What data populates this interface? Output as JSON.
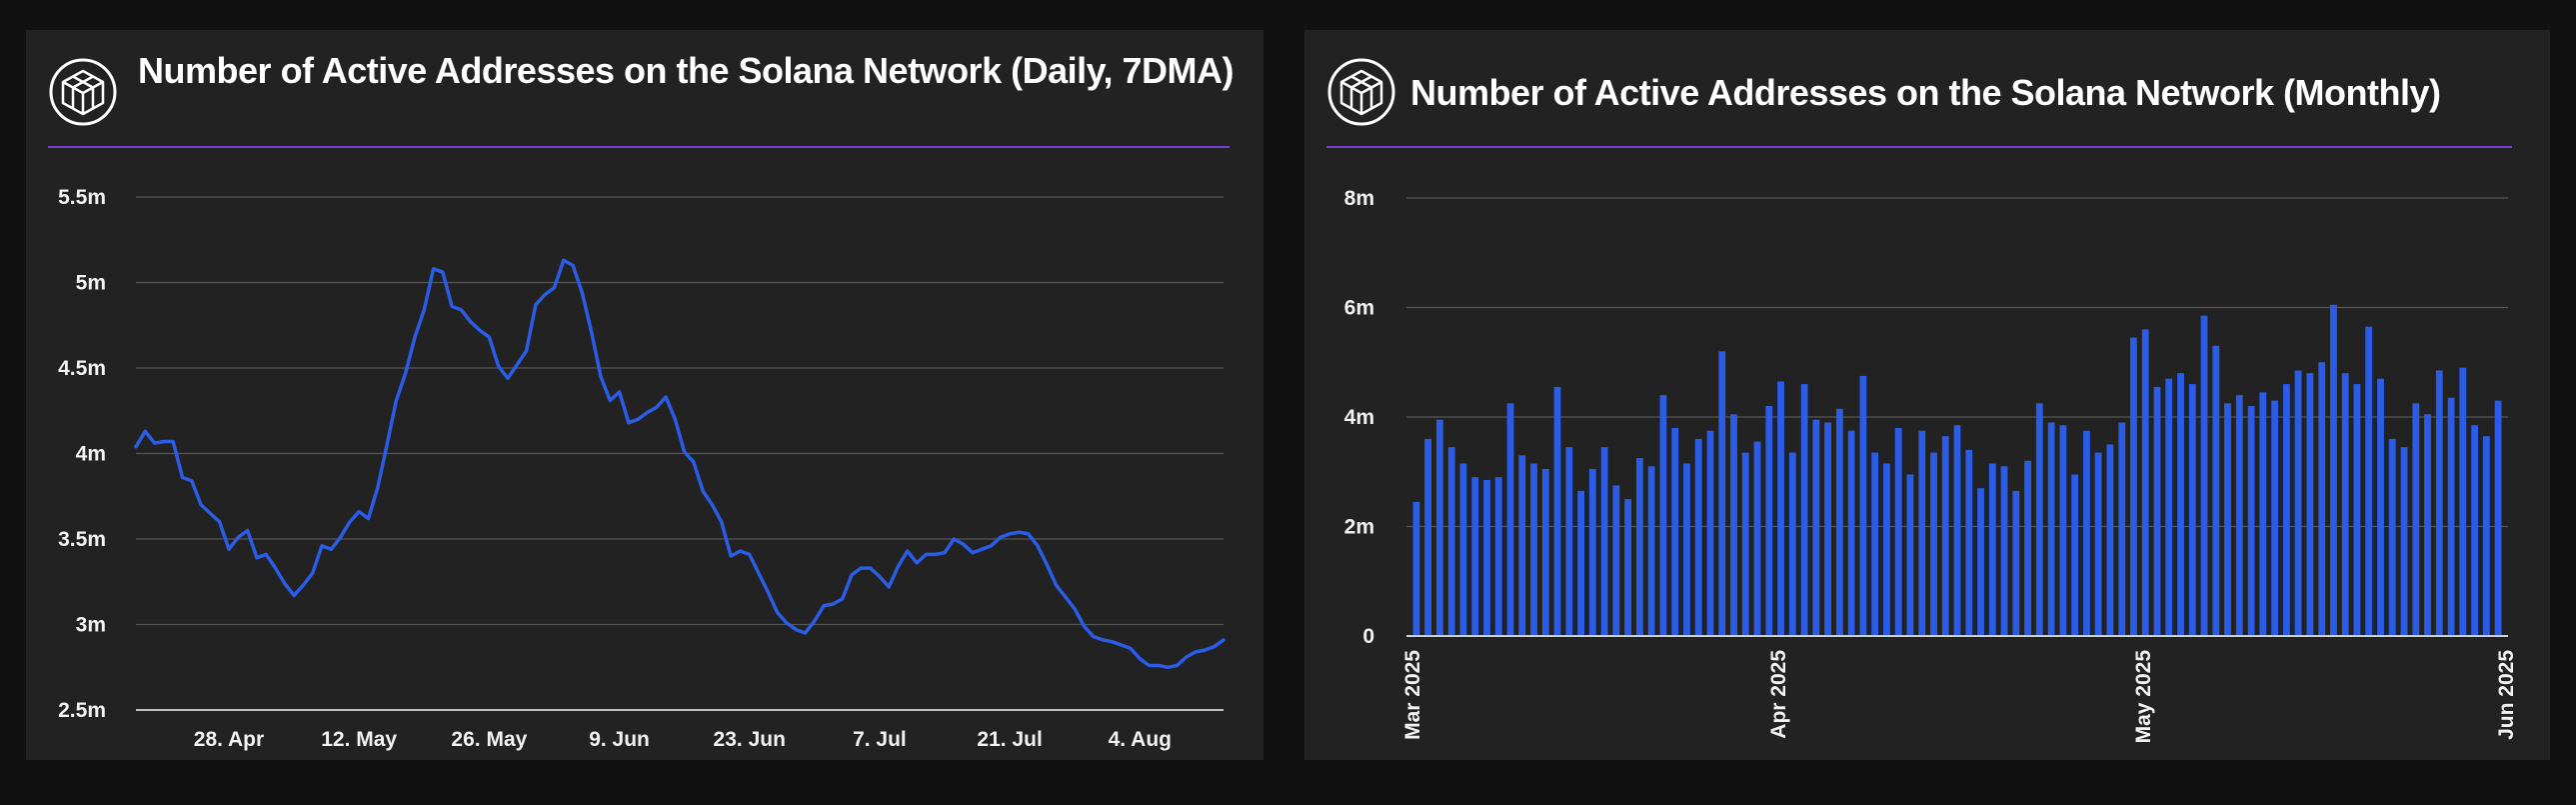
{
  "colors": {
    "panel": "#222222",
    "background": "#111111",
    "accent_rule": "#7a3bd1",
    "series": "#2b5ce6",
    "grid": "#555555"
  },
  "logo_icon": "cube-icon",
  "chart_data": [
    {
      "type": "line",
      "title": "Number of Active Addresses on the Solana Network (Daily, 7DMA)",
      "xlabel": "",
      "ylabel": "",
      "ylim": [
        2500000,
        5500000
      ],
      "y_ticks": [
        2500000,
        3000000,
        3500000,
        4000000,
        4500000,
        5000000,
        5500000
      ],
      "y_tick_labels": [
        "2.5m",
        "3m",
        "3.5m",
        "4m",
        "4.5m",
        "5m",
        "5.5m"
      ],
      "x_tick_labels": [
        "28. Apr",
        "12. May",
        "26. May",
        "9. Jun",
        "23. Jun",
        "7. Jul",
        "21. Jul",
        "4. Aug"
      ],
      "x_start": "2025-04-18",
      "series": [
        {
          "values": [
            4040000,
            4130000,
            4060000,
            4070000,
            4070000,
            3860000,
            3840000,
            3700000,
            3650000,
            3600000,
            3440000,
            3510000,
            3550000,
            3390000,
            3410000,
            3330000,
            3240000,
            3170000,
            3230000,
            3300000,
            3460000,
            3440000,
            3510000,
            3600000,
            3660000,
            3620000,
            3800000,
            4050000,
            4310000,
            4470000,
            4680000,
            4840000,
            5080000,
            5060000,
            4860000,
            4840000,
            4770000,
            4720000,
            4680000,
            4510000,
            4440000,
            4520000,
            4600000,
            4870000,
            4930000,
            4970000,
            5130000,
            5100000,
            4940000,
            4710000,
            4450000,
            4310000,
            4360000,
            4180000,
            4200000,
            4240000,
            4270000,
            4330000,
            4200000,
            4010000,
            3950000,
            3780000,
            3700000,
            3600000,
            3400000,
            3430000,
            3410000,
            3300000,
            3190000,
            3070000,
            3010000,
            2970000,
            2950000,
            3020000,
            3110000,
            3120000,
            3150000,
            3290000,
            3330000,
            3330000,
            3280000,
            3220000,
            3340000,
            3430000,
            3360000,
            3410000,
            3410000,
            3420000,
            3500000,
            3470000,
            3420000,
            3440000,
            3460000,
            3510000,
            3530000,
            3540000,
            3530000,
            3460000,
            3350000,
            3230000,
            3160000,
            3090000,
            2990000,
            2930000,
            2910000,
            2900000,
            2880000,
            2860000,
            2800000,
            2760000,
            2760000,
            2750000,
            2760000,
            2810000,
            2840000,
            2850000,
            2870000,
            2910000
          ]
        }
      ]
    },
    {
      "type": "bar",
      "title": "Number of Active Addresses on the Solana Network (Monthly)",
      "xlabel": "",
      "ylabel": "",
      "ylim": [
        0,
        8000000
      ],
      "y_ticks": [
        0,
        2000000,
        4000000,
        6000000,
        8000000
      ],
      "y_tick_labels": [
        "0",
        "2m",
        "4m",
        "6m",
        "8m"
      ],
      "x_tick_labels": [
        "Mar 2025",
        "Apr 2025",
        "May 2025",
        "Jun 2025"
      ],
      "series": [
        {
          "values": [
            2450000,
            3600000,
            3950000,
            3450000,
            3150000,
            2900000,
            2850000,
            2900000,
            4250000,
            3300000,
            3150000,
            3050000,
            4550000,
            3450000,
            2650000,
            3050000,
            3450000,
            2750000,
            2500000,
            3250000,
            3100000,
            4400000,
            3800000,
            3150000,
            3600000,
            3750000,
            5200000,
            4050000,
            3350000,
            3550000,
            4200000,
            4650000,
            3350000,
            4600000,
            3950000,
            3900000,
            4150000,
            3750000,
            4750000,
            3350000,
            3150000,
            3800000,
            2950000,
            3750000,
            3350000,
            3650000,
            3850000,
            3400000,
            2700000,
            3150000,
            3100000,
            2650000,
            3200000,
            4250000,
            3900000,
            3850000,
            2950000,
            3750000,
            3350000,
            3500000,
            3900000,
            5450000,
            5600000,
            4550000,
            4700000,
            4800000,
            4600000,
            5850000,
            5300000,
            4250000,
            4400000,
            4200000,
            4450000,
            4300000,
            4600000,
            4850000,
            4800000,
            5000000,
            6050000,
            4800000,
            4600000,
            5650000,
            4700000,
            3600000,
            3450000,
            4250000,
            4050000,
            4850000,
            4350000,
            4900000,
            3850000,
            3650000,
            4300000
          ]
        }
      ]
    }
  ]
}
